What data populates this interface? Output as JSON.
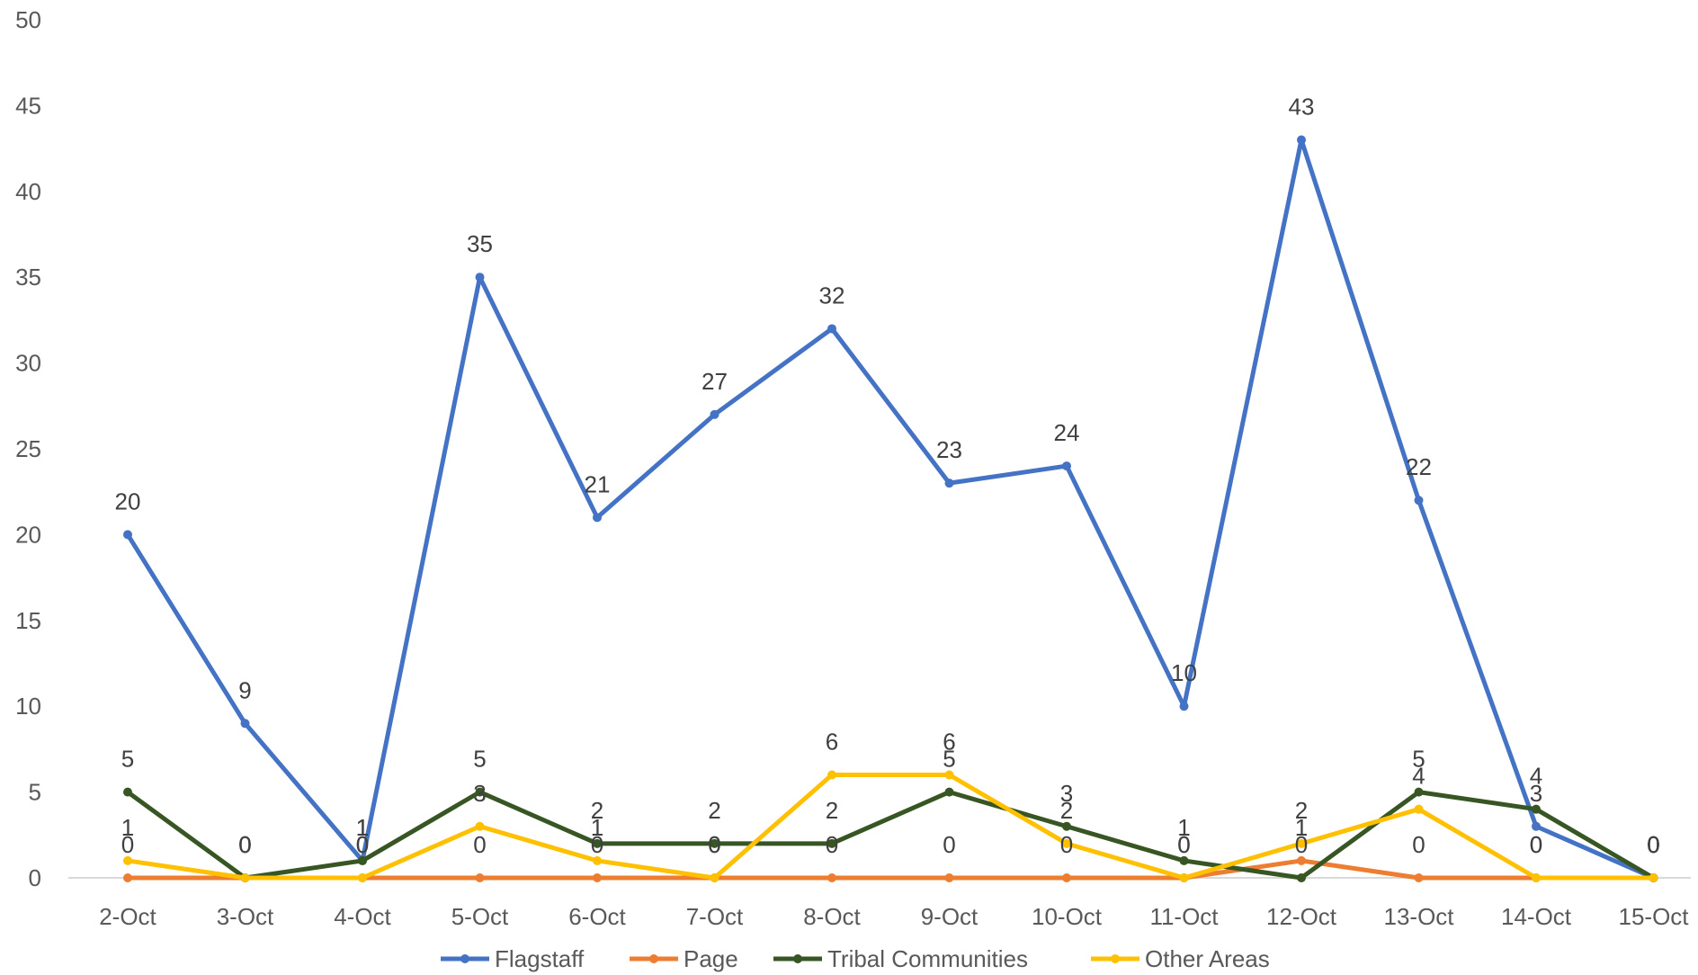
{
  "chart_data": {
    "type": "line",
    "title": "",
    "xlabel": "",
    "ylabel": "",
    "ylim": [
      0,
      50
    ],
    "y_ticks": [
      0,
      5,
      10,
      15,
      20,
      25,
      30,
      35,
      40,
      45,
      50
    ],
    "grid": false,
    "legend_position": "bottom",
    "categories": [
      "2-Oct",
      "3-Oct",
      "4-Oct",
      "5-Oct",
      "6-Oct",
      "7-Oct",
      "8-Oct",
      "9-Oct",
      "10-Oct",
      "11-Oct",
      "12-Oct",
      "13-Oct",
      "14-Oct",
      "15-Oct"
    ],
    "series": [
      {
        "name": "Flagstaff",
        "color": "#4472C4",
        "values": [
          20,
          9,
          1,
          35,
          21,
          27,
          32,
          23,
          24,
          10,
          43,
          22,
          3,
          0
        ]
      },
      {
        "name": "Page",
        "color": "#ED7D31",
        "values": [
          0,
          0,
          0,
          0,
          0,
          0,
          0,
          0,
          0,
          0,
          1,
          0,
          0,
          0
        ]
      },
      {
        "name": "Tribal Communities",
        "color": "#375623",
        "values": [
          5,
          0,
          1,
          5,
          2,
          2,
          2,
          5,
          3,
          1,
          0,
          5,
          4,
          0
        ]
      },
      {
        "name": "Other Areas",
        "color": "#FFC000",
        "values": [
          1,
          0,
          0,
          3,
          1,
          0,
          6,
          6,
          2,
          0,
          2,
          4,
          0,
          0
        ]
      }
    ]
  }
}
